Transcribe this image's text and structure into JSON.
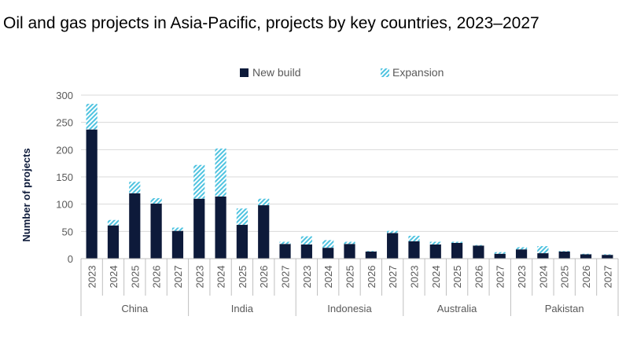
{
  "chart_data": {
    "type": "bar",
    "stacked": true,
    "title": "Oil and gas projects in Asia-Pacific, projects by key countries, 2023–2027",
    "ylabel": "Number of projects",
    "xlabel": "",
    "ylim": [
      0,
      300
    ],
    "yticks": [
      0,
      50,
      100,
      150,
      200,
      250,
      300
    ],
    "grid": true,
    "legend_position": "top",
    "groups": [
      "China",
      "India",
      "Indonesia",
      "Australia",
      "Pakistan"
    ],
    "years": [
      "2023",
      "2024",
      "2025",
      "2026",
      "2027"
    ],
    "series": [
      {
        "name": "New build",
        "color": "#0d1a3a",
        "pattern": "solid",
        "values": [
          237,
          61,
          120,
          101,
          51,
          110,
          114,
          62,
          98,
          27,
          26,
          20,
          27,
          13,
          47,
          32,
          26,
          29,
          24,
          9,
          17,
          10,
          13,
          8,
          7
        ]
      },
      {
        "name": "Expansion",
        "color": "#4fc3e0",
        "pattern": "hatched",
        "values": [
          47,
          10,
          21,
          10,
          6,
          62,
          88,
          30,
          12,
          4,
          15,
          14,
          4,
          1,
          4,
          10,
          5,
          2,
          1,
          3,
          4,
          13,
          1,
          1,
          1
        ]
      }
    ]
  }
}
